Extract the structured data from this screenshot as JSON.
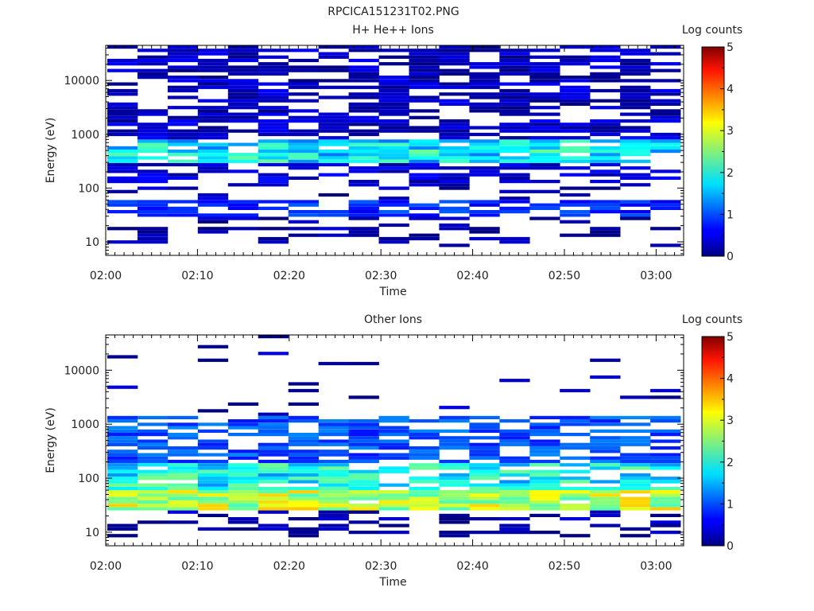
{
  "figure_title": "RPCICA151231T02.PNG",
  "chart_data": [
    {
      "type": "heatmap",
      "title": "H+ He++ Ions",
      "xlabel": "Time",
      "ylabel": "Energy (eV)",
      "x_ticks": [
        "02:00",
        "02:10",
        "02:20",
        "02:30",
        "02:40",
        "02:50",
        "03:00"
      ],
      "x_range_minutes": [
        0,
        63
      ],
      "y_scale": "log",
      "y_ticks": [
        10,
        100,
        1000,
        10000
      ],
      "y_range": [
        5.6,
        45000
      ],
      "colorbar": {
        "label": "Log counts",
        "ticks": [
          0,
          1,
          2,
          3,
          4,
          5
        ],
        "range": [
          0,
          5
        ]
      },
      "approx_levels": {
        "energy_gt_1000eV": 0.3,
        "energy_300_800eV": 1.8,
        "energy_100_300eV": 0.4,
        "energy_30_60eV": 0.8,
        "energy_lt_30eV": 0.2
      }
    },
    {
      "type": "heatmap",
      "title": "Other Ions",
      "xlabel": "Time",
      "ylabel": "Energy (eV)",
      "x_ticks": [
        "02:00",
        "02:10",
        "02:20",
        "02:30",
        "02:40",
        "02:50",
        "03:00"
      ],
      "x_range_minutes": [
        0,
        63
      ],
      "y_scale": "log",
      "y_ticks": [
        10,
        100,
        1000,
        10000
      ],
      "y_range": [
        5.6,
        45000
      ],
      "colorbar": {
        "label": "Log counts",
        "ticks": [
          0,
          1,
          2,
          3,
          4,
          5
        ],
        "range": [
          0,
          5
        ]
      },
      "approx_levels": {
        "energy_25_60eV_peak": 2.8,
        "energy_60_200eV": 1.9,
        "energy_200_1500eV": 1.0,
        "energy_gt_2000eV": 0.2,
        "energy_lt_20eV": 0.2
      }
    }
  ]
}
